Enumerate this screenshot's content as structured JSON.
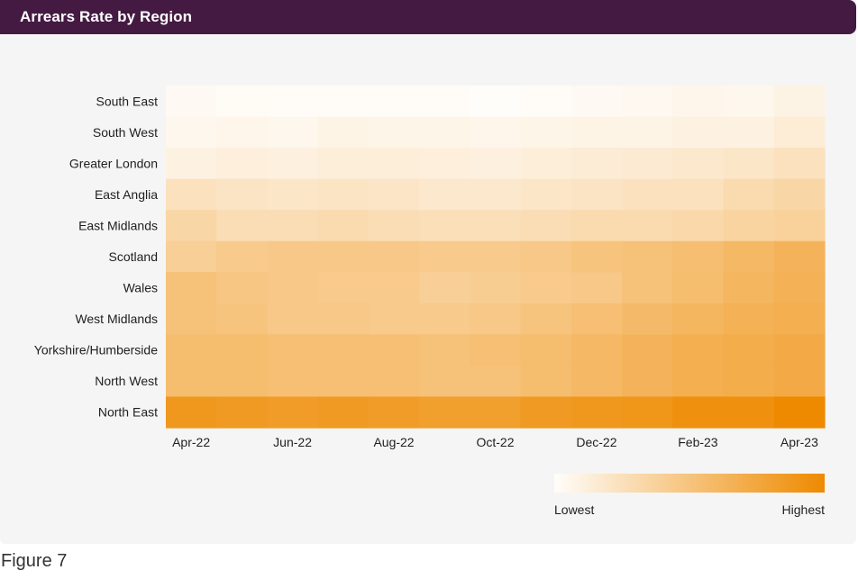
{
  "header": {
    "title": "Arrears Rate by Region"
  },
  "caption": "Figure 7",
  "legend": {
    "low_label": "Lowest",
    "high_label": "Highest",
    "low_color": "#fffdfa",
    "high_color": "#ee8a00"
  },
  "colors": {
    "title_bar": "#441a42",
    "panel": "#f5f5f5",
    "low": "#fffdfa",
    "high": "#ee8a00"
  },
  "chart_data": {
    "type": "heatmap",
    "title": "Arrears Rate by Region",
    "xlabel": "",
    "ylabel": "",
    "scale": "relative intensity 0 (Lowest) to 1 (Highest)",
    "x": [
      "Apr-22",
      "May-22",
      "Jun-22",
      "Jul-22",
      "Aug-22",
      "Sep-22",
      "Oct-22",
      "Nov-22",
      "Dec-22",
      "Jan-23",
      "Feb-23",
      "Mar-23",
      "Apr-23"
    ],
    "x_tick_labels": [
      "Apr-22",
      "Jun-22",
      "Aug-22",
      "Oct-22",
      "Dec-22",
      "Feb-23",
      "Apr-23"
    ],
    "y": [
      "South East",
      "South West",
      "Greater London",
      "East Anglia",
      "East Midlands",
      "Scotland",
      "Wales",
      "West Midlands",
      "Yorkshire/Humberside",
      "North West",
      "North East"
    ],
    "values": [
      [
        0.03,
        0.02,
        0.01,
        0.01,
        0.01,
        0.01,
        0.0,
        0.01,
        0.03,
        0.04,
        0.06,
        0.05,
        0.09
      ],
      [
        0.05,
        0.06,
        0.05,
        0.08,
        0.07,
        0.07,
        0.06,
        0.07,
        0.08,
        0.08,
        0.1,
        0.1,
        0.14
      ],
      [
        0.1,
        0.12,
        0.11,
        0.13,
        0.13,
        0.12,
        0.11,
        0.13,
        0.15,
        0.16,
        0.18,
        0.2,
        0.24
      ],
      [
        0.24,
        0.22,
        0.2,
        0.22,
        0.21,
        0.18,
        0.18,
        0.2,
        0.22,
        0.24,
        0.24,
        0.3,
        0.34
      ],
      [
        0.34,
        0.28,
        0.28,
        0.3,
        0.28,
        0.26,
        0.26,
        0.28,
        0.3,
        0.3,
        0.32,
        0.36,
        0.38
      ],
      [
        0.4,
        0.44,
        0.46,
        0.46,
        0.46,
        0.44,
        0.44,
        0.46,
        0.5,
        0.52,
        0.55,
        0.6,
        0.64
      ],
      [
        0.52,
        0.48,
        0.46,
        0.44,
        0.44,
        0.4,
        0.42,
        0.44,
        0.46,
        0.52,
        0.56,
        0.62,
        0.66
      ],
      [
        0.52,
        0.5,
        0.46,
        0.46,
        0.44,
        0.44,
        0.46,
        0.5,
        0.54,
        0.58,
        0.62,
        0.66,
        0.68
      ],
      [
        0.56,
        0.56,
        0.54,
        0.54,
        0.54,
        0.52,
        0.54,
        0.56,
        0.6,
        0.64,
        0.68,
        0.7,
        0.72
      ],
      [
        0.56,
        0.56,
        0.54,
        0.54,
        0.54,
        0.52,
        0.52,
        0.56,
        0.6,
        0.64,
        0.68,
        0.7,
        0.72
      ],
      [
        0.88,
        0.86,
        0.84,
        0.86,
        0.84,
        0.82,
        0.82,
        0.86,
        0.88,
        0.9,
        0.94,
        0.94,
        1.0
      ]
    ]
  }
}
